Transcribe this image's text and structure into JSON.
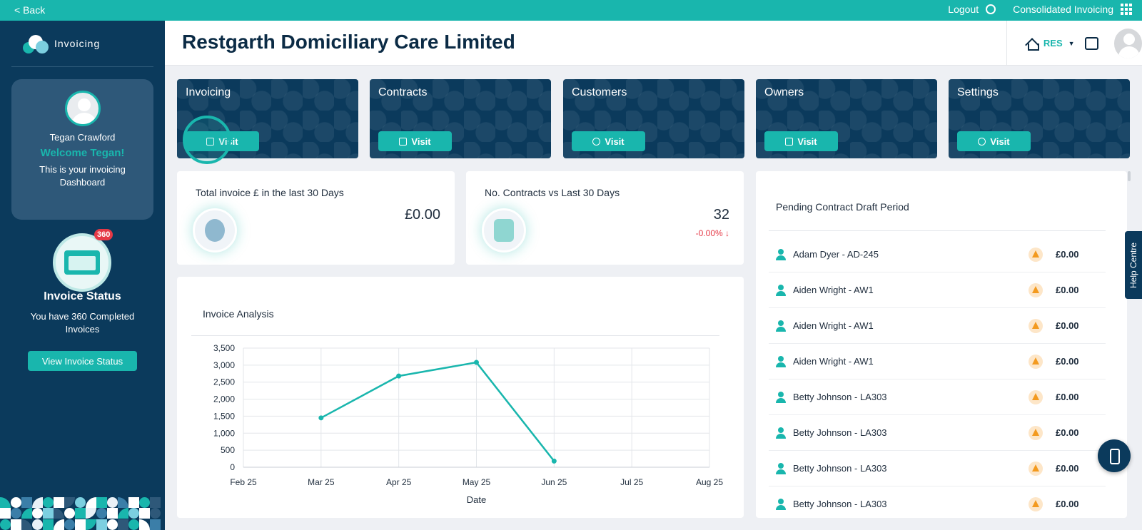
{
  "topbar": {
    "back": "< Back",
    "logout": "Logout",
    "consolidated": "Consolidated Invoicing"
  },
  "sidebar": {
    "brand": "Invoicing",
    "user_name": "Tegan Crawford",
    "welcome": "Welcome Tegan!",
    "dashboard_text": "This is your invoicing Dashboard",
    "badge": "360",
    "status_title": "Invoice Status",
    "status_desc": "You have 360 Completed Invoices",
    "status_button": "View Invoice Status"
  },
  "header": {
    "title": "Restgarth Domiciliary Care Limited",
    "org_code": "RES"
  },
  "tiles": [
    {
      "label": "Invoicing",
      "button": "Visit"
    },
    {
      "label": "Contracts",
      "button": "Visit"
    },
    {
      "label": "Customers",
      "button": "Visit"
    },
    {
      "label": "Owners",
      "button": "Visit"
    },
    {
      "label": "Settings",
      "button": "Visit"
    }
  ],
  "stats": {
    "total_label": "Total invoice £ in the last 30 Days",
    "total_value": "£0.00",
    "contracts_label": "No. Contracts vs Last 30 Days",
    "contracts_value": "32",
    "contracts_delta": "-0.00% ↓"
  },
  "chart": {
    "title": "Invoice Analysis"
  },
  "chart_data": {
    "type": "line",
    "x": [
      "Feb 25",
      "Mar 25",
      "Apr 25",
      "May 25",
      "Jun 25",
      "Jul 25",
      "Aug 25"
    ],
    "series": [
      {
        "values": [
          null,
          1450,
          2680,
          3080,
          180,
          null,
          null
        ]
      }
    ],
    "yticks": [
      "0",
      "500",
      "1,000",
      "1,500",
      "2,000",
      "2,500",
      "3,000",
      "3,500"
    ],
    "xlabel": "Date",
    "ylabel": "",
    "ylim": [
      0,
      3500
    ],
    "grid": true,
    "color": "#19b6ad"
  },
  "pending": {
    "title": "Pending Contract Draft Period",
    "rows": [
      {
        "name": "Adam Dyer - AD-245",
        "amount": "£0.00"
      },
      {
        "name": "Aiden Wright - AW1",
        "amount": "£0.00"
      },
      {
        "name": "Aiden Wright - AW1",
        "amount": "£0.00"
      },
      {
        "name": "Aiden Wright - AW1",
        "amount": "£0.00"
      },
      {
        "name": "Betty Johnson - LA303",
        "amount": "£0.00"
      },
      {
        "name": "Betty Johnson - LA303",
        "amount": "£0.00"
      },
      {
        "name": "Betty Johnson - LA303",
        "amount": "£0.00"
      },
      {
        "name": "Betty Johnson - LA303",
        "amount": "£0.00"
      }
    ]
  },
  "help": {
    "label": "Help Centre"
  }
}
